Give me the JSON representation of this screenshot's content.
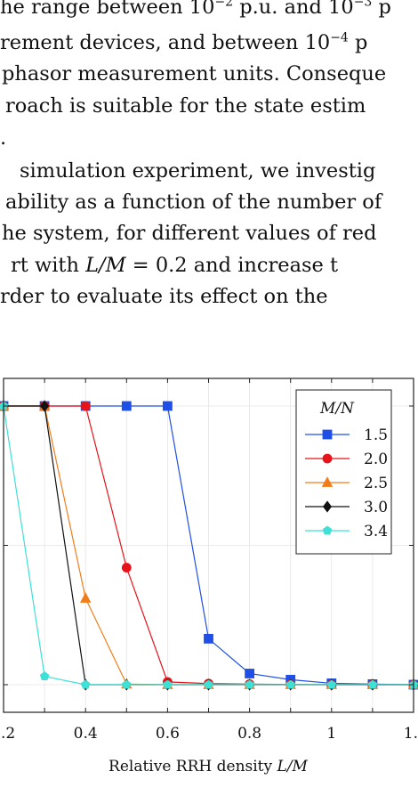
{
  "paragraph": {
    "line1_a": "he range between ",
    "line1_exp1": "10",
    "line1_sup1": "−2",
    "line1_b": " p.u. and ",
    "line1_exp2": "10",
    "line1_sup2": "−3",
    "line1_c": " p",
    "line2": "rement devices, and between ",
    "line2_exp": "10",
    "line2_sup": "−4",
    "line2_tail": " p",
    "line3": "phasor measurement units. Conseque",
    "line4": "roach is suitable for the state estim",
    "line5": ".",
    "line6": "simulation experiment, we investig",
    "line7": "ability as a function of the number of",
    "line8": "he system, for different values of red",
    "line9_a": "rt with ",
    "line9_math": "L/M",
    "line9_b": " = 0.2 and increase t",
    "line10": "rder to evaluate its effect on the"
  },
  "chart_data": {
    "type": "line",
    "x": [
      0.2,
      0.3,
      0.4,
      0.5,
      0.6,
      0.7,
      0.8,
      0.9,
      1.0,
      1.1,
      1.2
    ],
    "series": [
      {
        "name": "1.5",
        "color": "#1f4fe6",
        "marker": "square",
        "values": [
          1.0,
          1.0,
          1.0,
          1.0,
          1.0,
          0.165,
          0.04,
          0.018,
          0.005,
          0.002,
          0.0
        ]
      },
      {
        "name": "2.0",
        "color": "#e6131a",
        "marker": "circle",
        "values": [
          1.0,
          1.0,
          1.0,
          0.42,
          0.01,
          0.004,
          0.002,
          0.001,
          0.0,
          0.0,
          0.0
        ]
      },
      {
        "name": "2.5",
        "color": "#f07d1a",
        "marker": "triangle",
        "values": [
          1.0,
          1.0,
          0.31,
          0.002,
          0.0,
          0.0,
          0.0,
          0.0,
          0.0,
          0.0,
          0.0
        ]
      },
      {
        "name": "3.0",
        "color": "#111111",
        "marker": "diamond",
        "values": [
          1.0,
          1.0,
          0.0,
          0.0,
          0.0,
          0.0,
          0.0,
          0.0,
          0.0,
          0.0,
          0.0
        ]
      },
      {
        "name": "3.4",
        "color": "#3fe0d6",
        "marker": "pentagon",
        "values": [
          1.0,
          0.03,
          0.0,
          0.0,
          0.0,
          0.0,
          0.0,
          0.0,
          0.0,
          0.0,
          0.0
        ]
      }
    ],
    "xlabel_text": "Relative RRH density ",
    "xlabel_math": "L/M",
    "legend_title": "M/N",
    "xticks": [
      ".2",
      "0.4",
      "0.6",
      "0.8",
      "1",
      "1."
    ],
    "xtick_values": [
      0.2,
      0.4,
      0.6,
      0.8,
      1.0,
      1.2
    ],
    "xlim": [
      0.2,
      1.2
    ],
    "ylim": [
      0,
      1
    ],
    "yticks": [
      0,
      0.5,
      1.0
    ],
    "grid": true,
    "legend_position": "top-right"
  }
}
